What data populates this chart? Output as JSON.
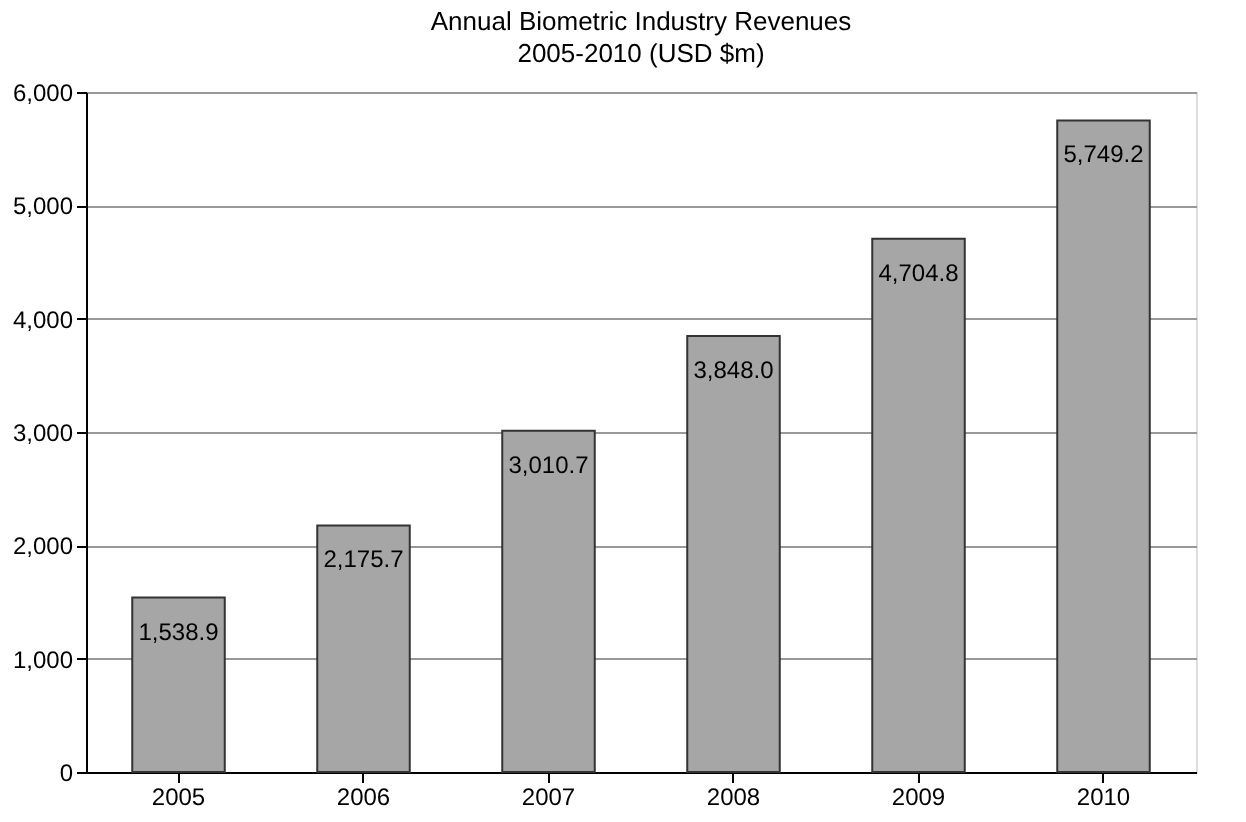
{
  "chart_data": {
    "type": "bar",
    "title": "Annual Biometric Industry Revenues",
    "subtitle": "2005-2010 (USD $m)",
    "categories": [
      "2005",
      "2006",
      "2007",
      "2008",
      "2009",
      "2010"
    ],
    "values": [
      1538.9,
      2175.7,
      3010.7,
      3848.0,
      4704.8,
      5749.2
    ],
    "value_labels": [
      "1,538.9",
      "2,175.7",
      "3,010.7",
      "3,848.0",
      "4,704.8",
      "5,749.2"
    ],
    "color": "#a6a6a6",
    "ylim": [
      0,
      6000
    ],
    "yticks": [
      {
        "value": 0,
        "label": "0"
      },
      {
        "value": 1000,
        "label": "1,000"
      },
      {
        "value": 2000,
        "label": "2,000"
      },
      {
        "value": 3000,
        "label": "3,000"
      },
      {
        "value": 4000,
        "label": "4,000"
      },
      {
        "value": 5000,
        "label": "5,000"
      },
      {
        "value": 6000,
        "label": "6,000"
      }
    ],
    "grid": "y"
  }
}
